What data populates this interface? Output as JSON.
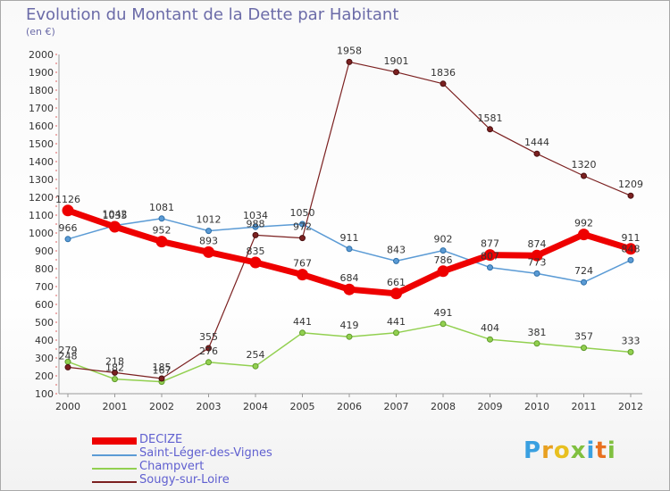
{
  "header": {
    "title": "Evolution du Montant de la Dette par Habitant",
    "subtitle": "(en €)"
  },
  "logo": {
    "letters": [
      "P",
      "r",
      "o",
      "x",
      "i",
      "t",
      "i"
    ],
    "colors": [
      "#3aa0e0",
      "#e8a020",
      "#e8c020",
      "#80c040",
      "#3aa0e0",
      "#e87020",
      "#80c040"
    ]
  },
  "chart_data": {
    "type": "line",
    "title": "Evolution du Montant de la Dette par Habitant",
    "subtitle": "(en €)",
    "x": [
      "2000",
      "2001",
      "2002",
      "2003",
      "2004",
      "2005",
      "2006",
      "2007",
      "2008",
      "2009",
      "2010",
      "2011",
      "2012"
    ],
    "ylim": [
      100,
      2000
    ],
    "yticks": [
      100,
      200,
      300,
      400,
      500,
      600,
      700,
      800,
      900,
      1000,
      1100,
      1200,
      1300,
      1400,
      1500,
      1600,
      1700,
      1800,
      1900,
      2000
    ],
    "grid": false,
    "legend_position": "bottom-left",
    "series": [
      {
        "name": "DECIZE",
        "color": "#ee0000",
        "values": [
          1126,
          1035,
          952,
          893,
          835,
          767,
          684,
          661,
          786,
          877,
          874,
          992,
          911
        ]
      },
      {
        "name": "Saint-Léger-des-Vignes",
        "color": "#5b9bd5",
        "values": [
          966,
          1042,
          1081,
          1012,
          1034,
          1050,
          911,
          843,
          902,
          807,
          773,
          724,
          848
        ]
      },
      {
        "name": "Champvert",
        "color": "#92d050",
        "values": [
          279,
          182,
          167,
          276,
          254,
          441,
          419,
          441,
          491,
          404,
          381,
          357,
          333
        ]
      },
      {
        "name": "Sougy-sur-Loire",
        "color": "#7b2020",
        "values": [
          248,
          218,
          185,
          355,
          988,
          972,
          1958,
          1901,
          1836,
          1581,
          1444,
          1320,
          1209
        ]
      }
    ]
  }
}
